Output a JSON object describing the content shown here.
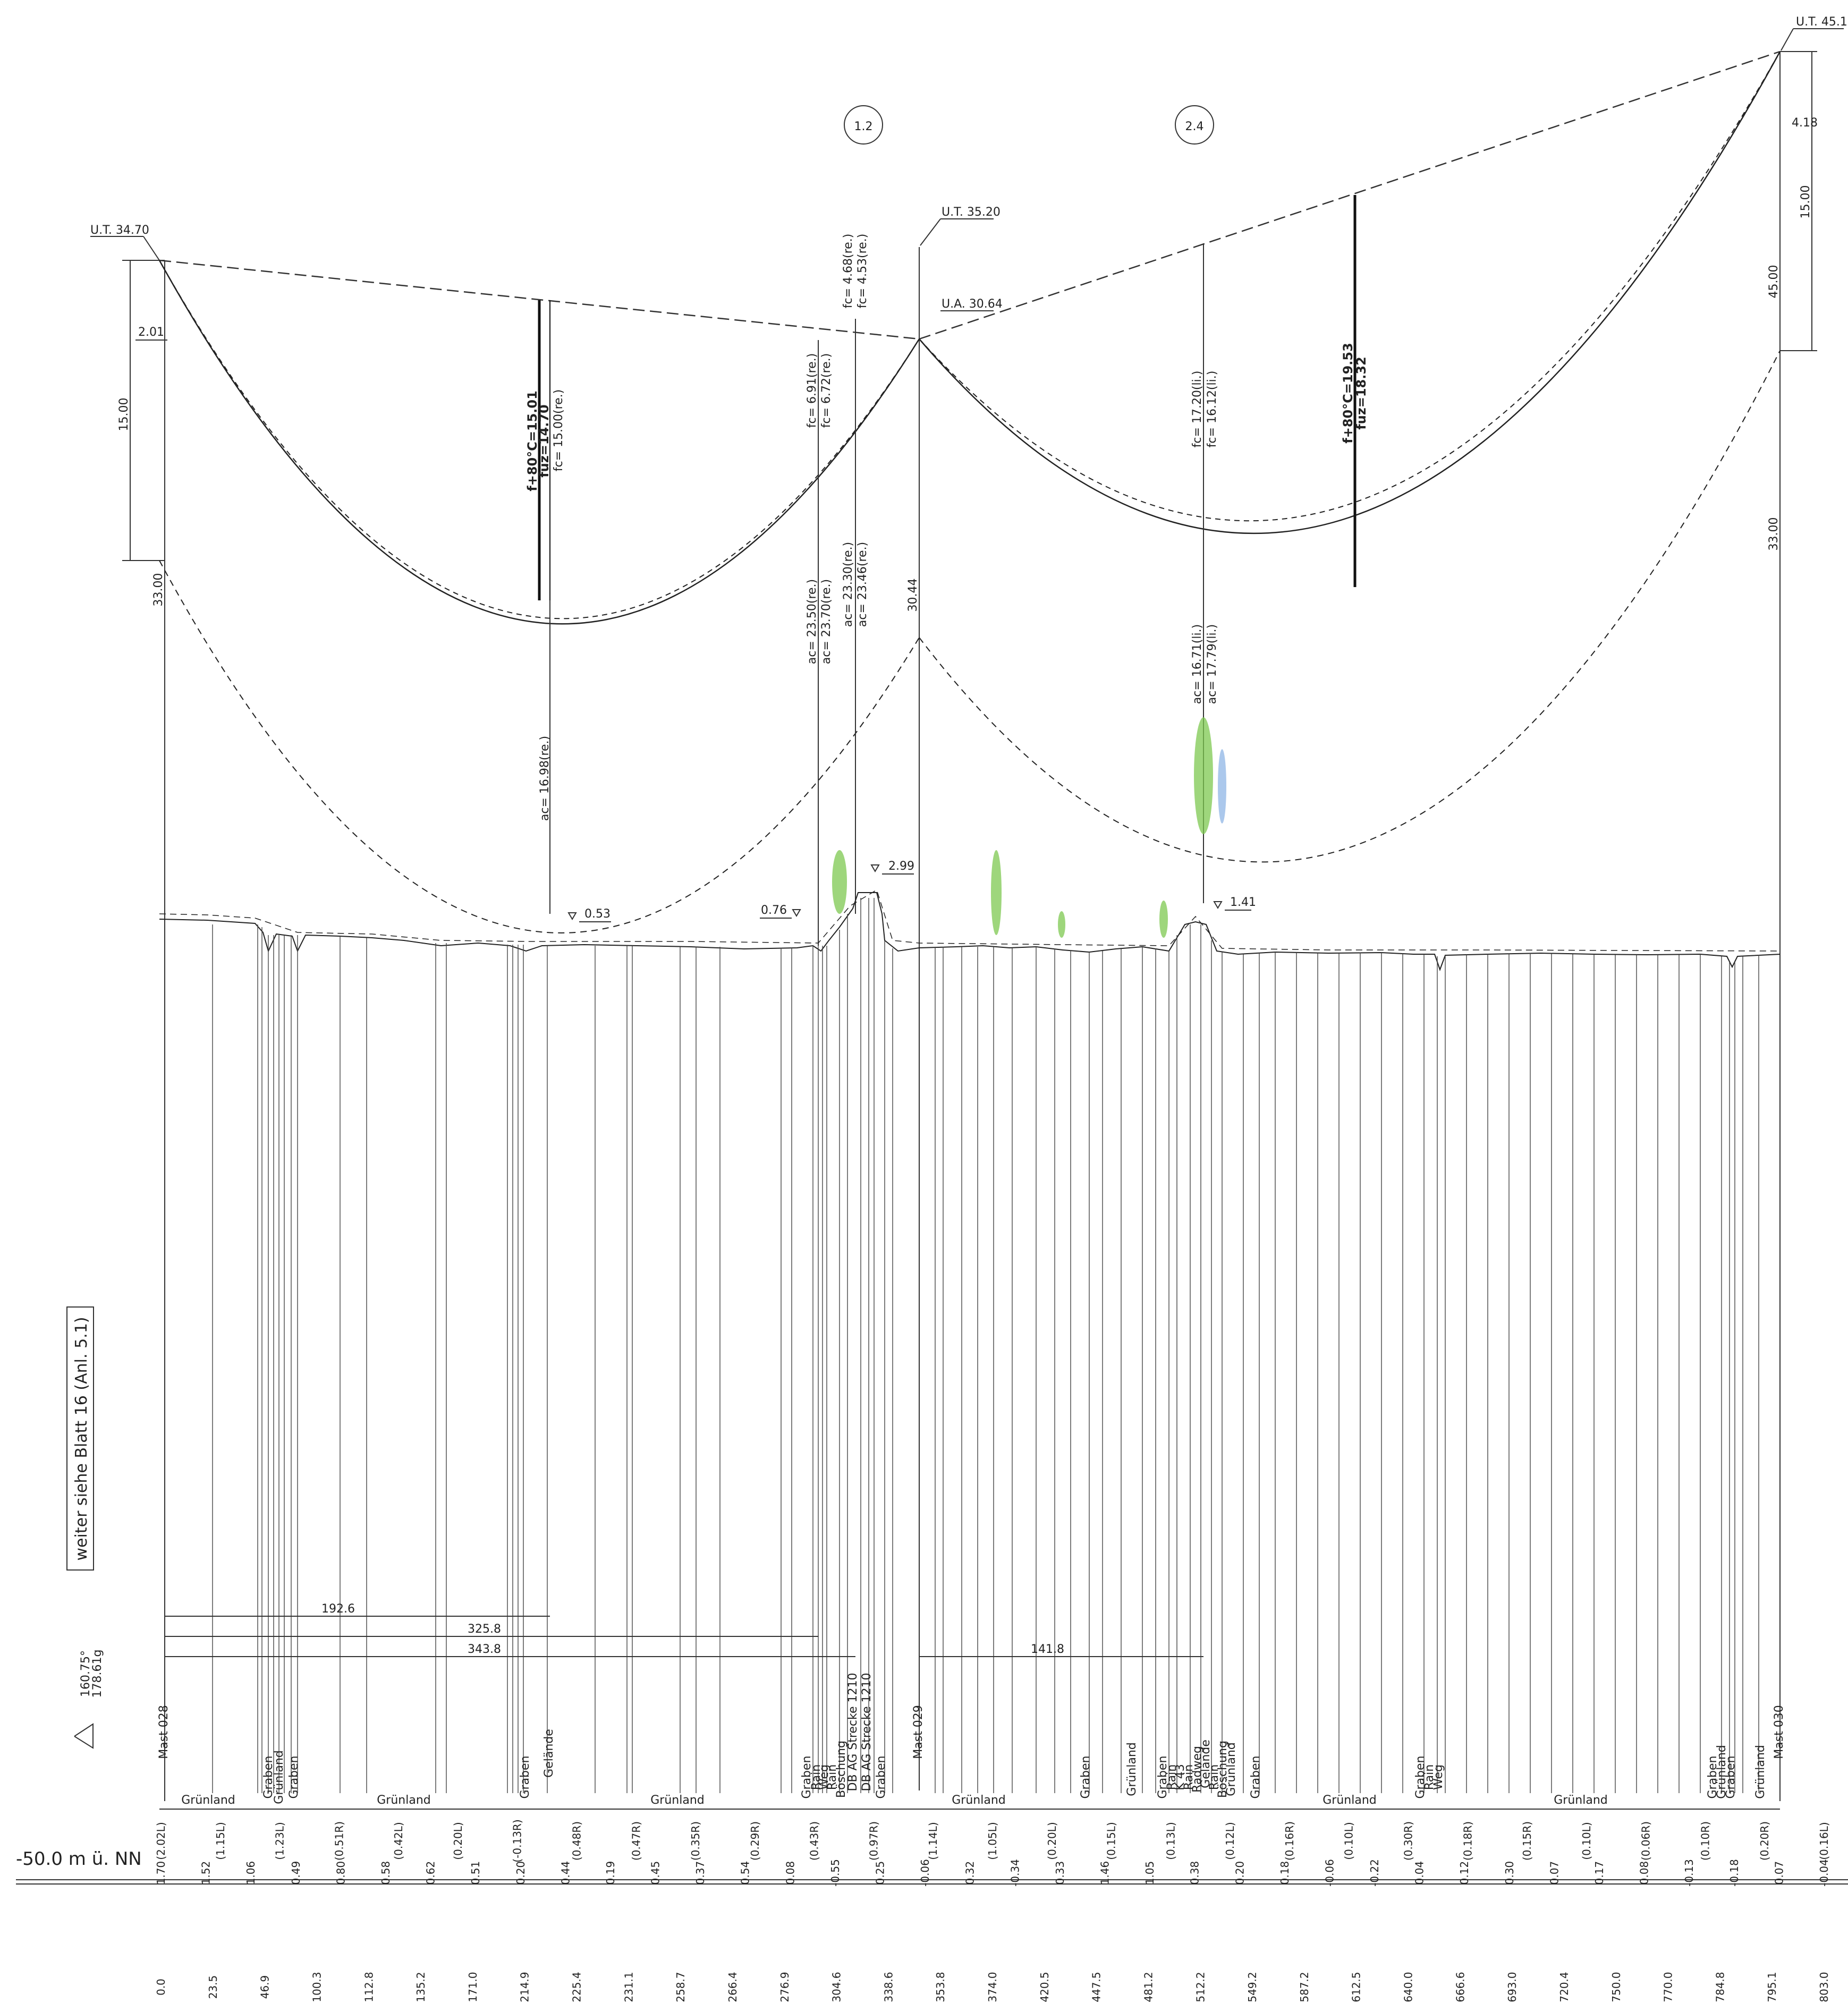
{
  "towers": [
    {
      "name": "Mast 028",
      "ut": "U.T. 34.70",
      "height": "33.00",
      "span_top": "15.00",
      "offset": "2.01"
    },
    {
      "name": "Mast 029",
      "ut": "U.T. 35.20",
      "ua": "U.A. 30.64",
      "height": "30.44"
    },
    {
      "name": "Mast 030",
      "ut": "U.T. 45.10",
      "height": "33.00",
      "span_top": "15.00",
      "extra": "45.00",
      "offset": "4.18"
    }
  ],
  "spans": [
    {
      "id": "1.2",
      "sag_bold": "f+80°C=15.01",
      "fuz": "fuz=14.70",
      "fc": "fc= 15.00(re.)",
      "ac": "ac= 16.98(re.)"
    },
    {
      "id": "2.4",
      "sag_bold": "f+80°C=19.53",
      "fuz": "fuz=18.32",
      "fc1": "fc= 17.20(li.)",
      "fc2": "fc= 16.12(li.)",
      "ac1": "ac= 16.71(li.)",
      "ac2": "ac= 17.79(li.)"
    }
  ],
  "crossing_labels": [
    "fc= 6.91(re.)",
    "fc= 6.72(re.)",
    "fc= 4.68(re.)",
    "fc= 4.53(re.)",
    "ac= 23.50(re.)",
    "ac= 23.70(re.)",
    "ac= 23.30(re.)",
    "ac= 23.46(re.)"
  ],
  "clearance_marks": [
    "0.53",
    "0.76",
    "2.99",
    "1.41"
  ],
  "distances": [
    "192.6",
    "325.8",
    "343.8",
    "141.8"
  ],
  "side_note": "weiter siehe Blatt 16 (Anl. 5.1)",
  "angle_top": "160.75°",
  "angle_bottom": "178.61g",
  "datum": "-50.0 m ü. NN",
  "vertical_labels": [
    "Graben",
    "Grünland",
    "Graben",
    "Graben",
    "Gelände",
    "Graben",
    "Rain",
    "Weg",
    "Rain",
    "Böschung",
    "DB AG Strecke 1210",
    "DB AG Strecke 1210",
    "Graben",
    "Graben",
    "Grünland",
    "Graben",
    "Rain",
    "K 43",
    "Rain",
    "Radweg",
    "Gelände",
    "Rain",
    "Böschung",
    "Grünland",
    "Graben",
    "Graben",
    "Rain",
    "Weg",
    "Graben",
    "Grünland",
    "Graben",
    "Grünland"
  ],
  "land_use": [
    "Grünland",
    "Grünland",
    "Grünland",
    "Grünland",
    "Grünland",
    "Grünland",
    "Grünland"
  ],
  "offset_row": [
    "(2.02L)",
    "(1.15L)",
    "(1.23L)",
    "(0.51R)",
    "(0.42L)",
    "(0.20L)",
    "(-0.13R)",
    "(0.48R)",
    "(0.47R)",
    "(0.35R)",
    "(0.29R)",
    "(0.43R)",
    "(0.97R)",
    "(1.14L)",
    "(1.05L)",
    "(0.20L)",
    "(0.15L)",
    "(0.13L)",
    "(0.12L)",
    "(0.16R)",
    "(0.10L)",
    "(0.30R)",
    "(0.18R)",
    "(0.15R)",
    "(0.10L)",
    "(0.06R)",
    "(0.10R)",
    "(0.20R)",
    "(0.16L)"
  ],
  "height_row": [
    "1.70",
    "1.52",
    "1.06",
    "0.49",
    "0.80",
    "0.58",
    "0.62",
    "0.51",
    "0.20",
    "0.44",
    "0.19",
    "0.45",
    "0.37",
    "0.54",
    "0.08",
    "-0.55",
    "0.25",
    "-0.06",
    "0.32",
    "-0.34",
    "0.33",
    "1.46",
    "1.05",
    "0.38",
    "0.20",
    "0.18",
    "-0.06",
    "-0.22",
    "0.04",
    "0.12",
    "0.30",
    "0.07",
    "0.17",
    "0.08",
    "-0.13",
    "-0.18",
    "0.07",
    "-0.04"
  ],
  "station_row": [
    "0.0",
    "23.5",
    "46.9",
    "100.3",
    "112.8",
    "135.2",
    "171.0",
    "214.9",
    "225.4",
    "231.1",
    "258.7",
    "266.4",
    "276.9",
    "304.6",
    "338.6",
    "353.8",
    "374.0",
    "420.5",
    "447.5",
    "481.2",
    "512.2",
    "549.2",
    "587.2",
    "612.5",
    "640.0",
    "666.6",
    "693.0",
    "720.4",
    "750.0",
    "770.0",
    "784.8",
    "795.1",
    "803.0"
  ]
}
